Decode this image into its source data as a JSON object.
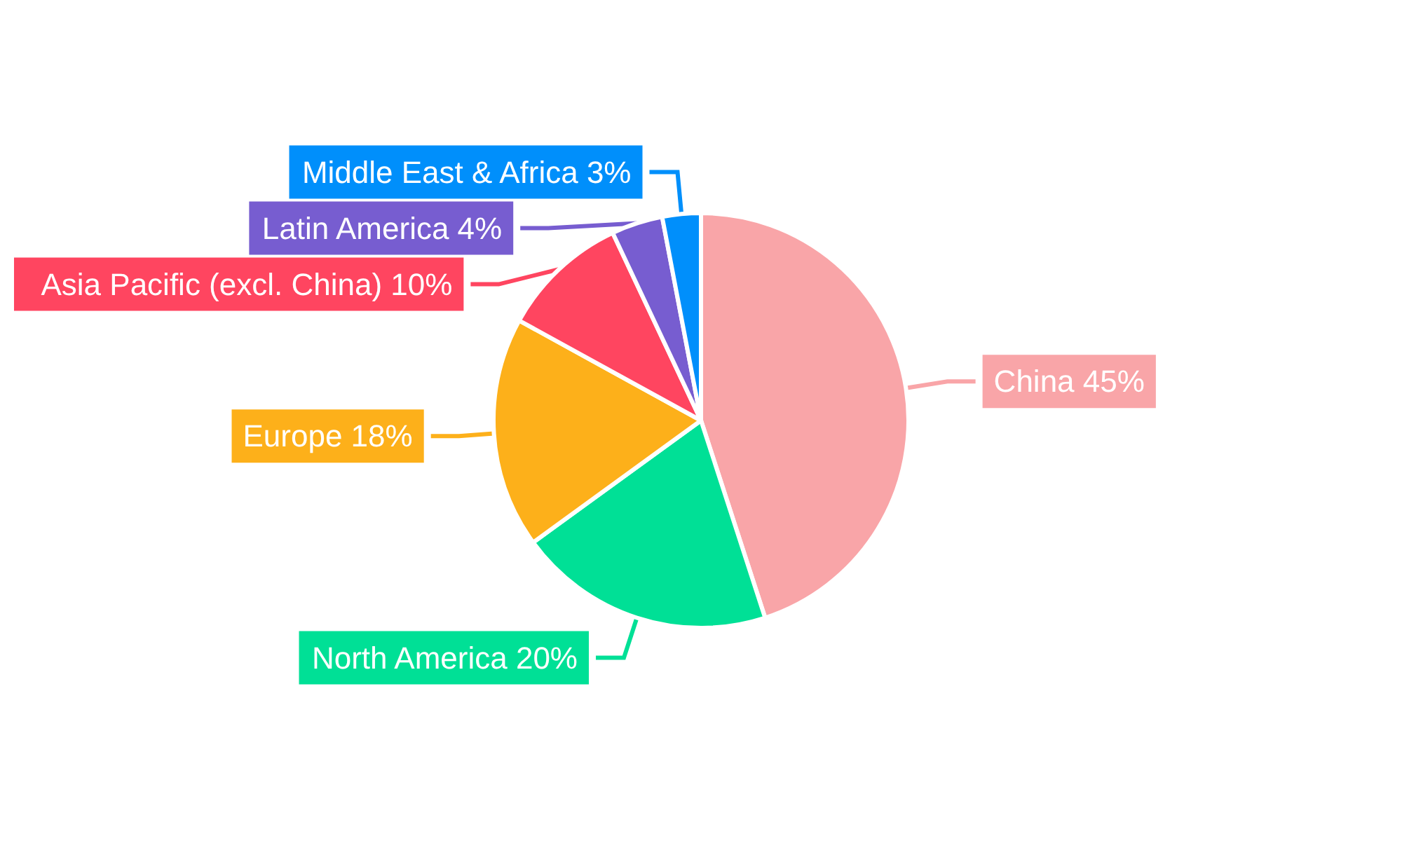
{
  "chart_data": {
    "type": "pie",
    "categories": [
      "China",
      "North America",
      "Europe",
      "Asia Pacific (excl. China)",
      "Latin America",
      "Middle East & Africa"
    ],
    "values": [
      45,
      20,
      18,
      10,
      4,
      3
    ],
    "value_labels": [
      "45%",
      "20%",
      "18%",
      "10%",
      "4%",
      "3%"
    ],
    "colors": [
      "#f9a5a8",
      "#00e096",
      "#fdb01a",
      "#ff4560",
      "#775dd0",
      "#008ffb"
    ],
    "legend": false
  }
}
